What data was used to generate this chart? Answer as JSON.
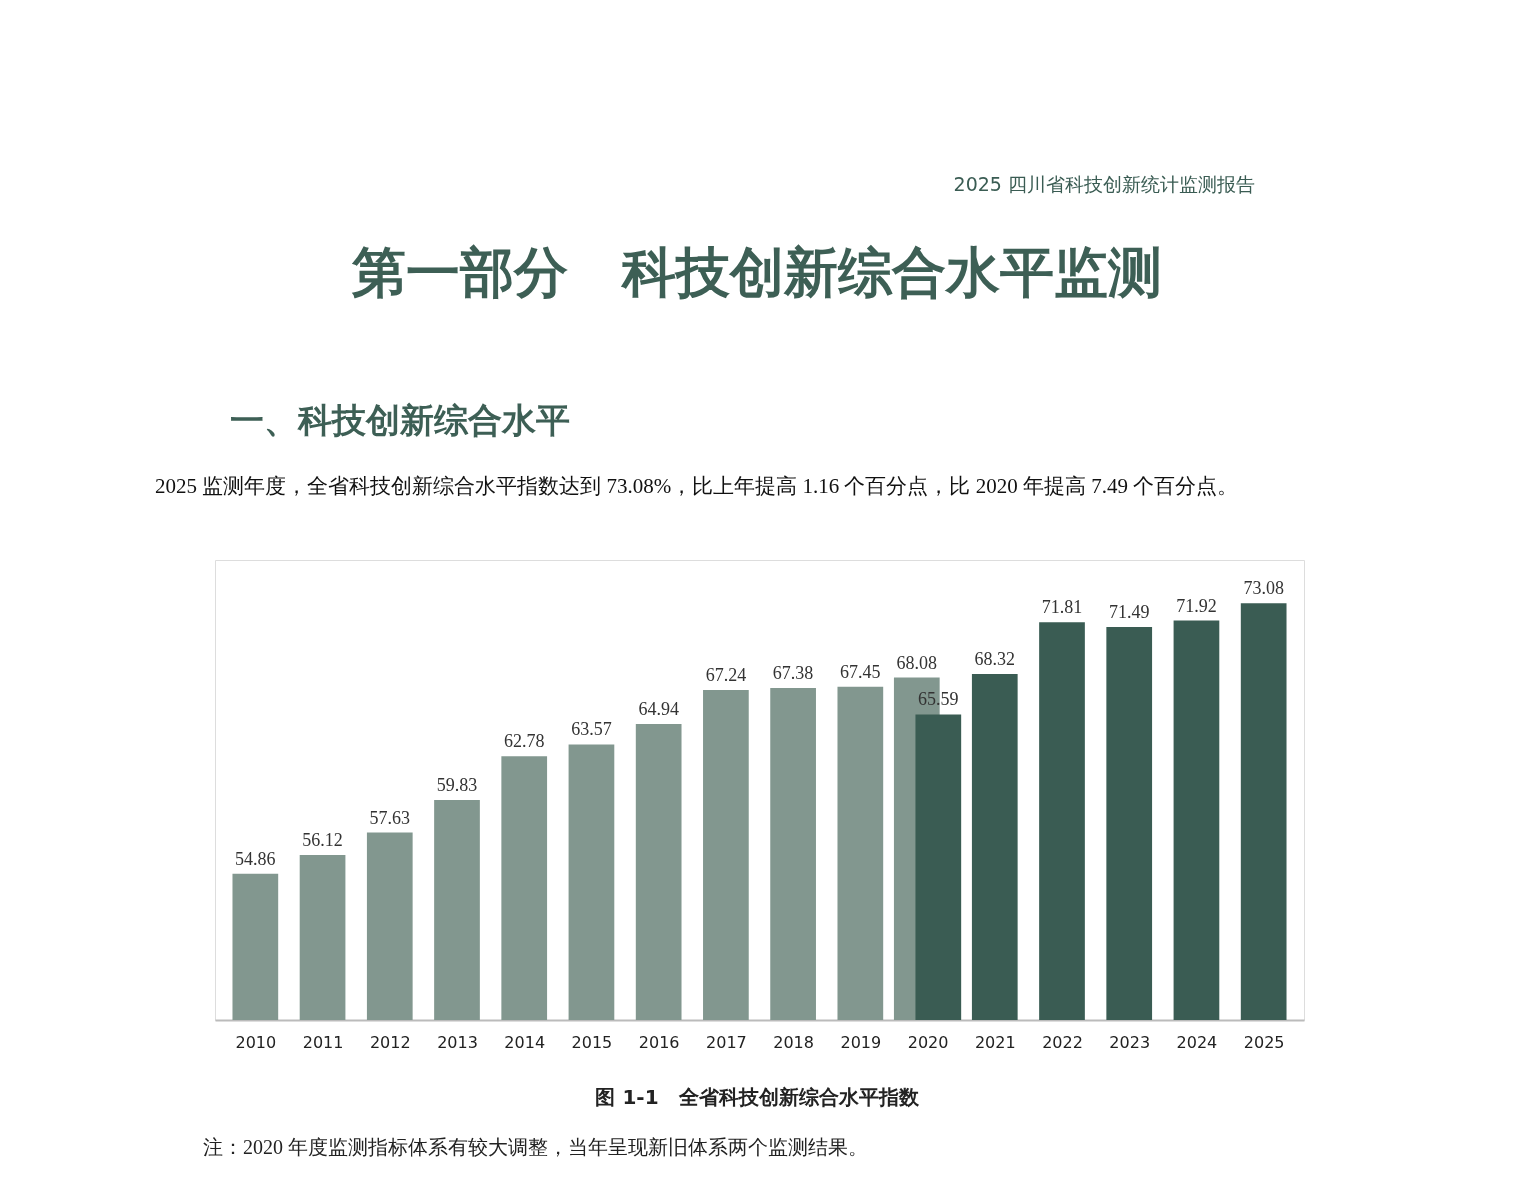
{
  "chart_data": {
    "type": "bar",
    "title": "第一部分　科技创新综合水平监测",
    "subtitle": "一、科技创新综合水平",
    "annotations": [
      "2025 四川省科技创新统计监测报告",
      "2025 监测年度，全省科技创新综合水平指数达到 73.08%，比上年提高 1.16 个百分点，比 2020 年提高 7.49 个百分点。",
      "图 1-1　全省科技创新综合水平指数",
      "注：2020 年度监测指标体系有较大调整，当年呈现新旧体系两个监测结果。"
    ],
    "categories": [
      "2010",
      "2011",
      "2012",
      "2013",
      "2014",
      "2015",
      "2016",
      "2017",
      "2018",
      "2019",
      "2020",
      "2021",
      "2022",
      "2023",
      "2024",
      "2025"
    ],
    "series": [
      {
        "color": "#82978f",
        "values": [
          54.86,
          56.12,
          57.63,
          59.83,
          62.78,
          63.57,
          64.94,
          67.24,
          67.38,
          67.45,
          68.08,
          null,
          null,
          null,
          null,
          null
        ]
      },
      {
        "color": "#3a5c53",
        "values": [
          null,
          null,
          null,
          null,
          null,
          null,
          null,
          null,
          null,
          null,
          65.59,
          68.32,
          71.81,
          71.49,
          71.92,
          73.08
        ]
      }
    ],
    "ylim": [
      45,
      76
    ],
    "data_labels": true,
    "grid": false
  }
}
